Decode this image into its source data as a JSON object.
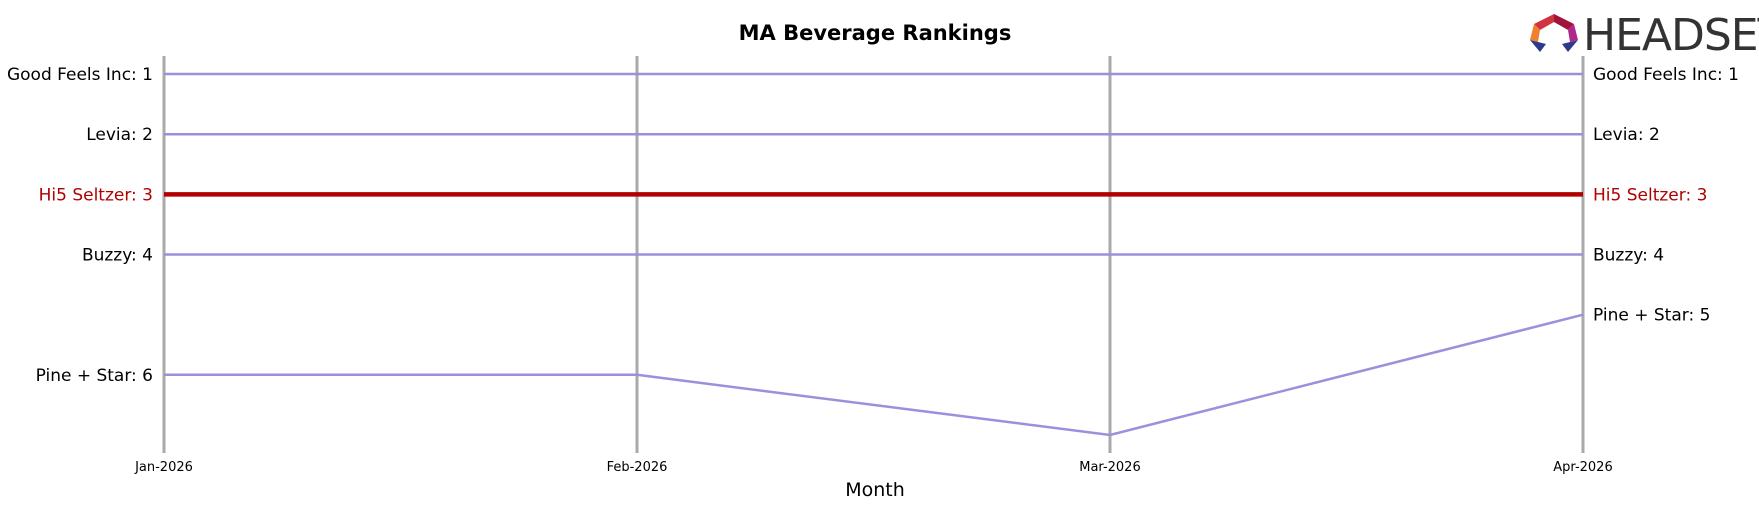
{
  "logo": {
    "text": "HEADSET"
  },
  "chart_data": {
    "type": "line",
    "title": "MA Beverage Rankings",
    "xlabel": "Month",
    "ylabel": "",
    "x": [
      "Jan-2026",
      "Feb-2026",
      "Mar-2026",
      "Apr-2026"
    ],
    "ylim": [
      7.3,
      0.7
    ],
    "y_inverted": true,
    "grid": "vertical lines at each month",
    "colors": {
      "default": "#9b90dc",
      "highlight": "#b00000",
      "grid": "#aaaaaa"
    },
    "series": [
      {
        "name": "Good Feels Inc",
        "values": [
          1,
          1,
          1,
          1
        ],
        "start_label": "Good Feels Inc: 1",
        "end_label": "Good Feels Inc: 1",
        "highlight": false
      },
      {
        "name": "Levia",
        "values": [
          2,
          2,
          2,
          2
        ],
        "start_label": "Levia: 2",
        "end_label": "Levia: 2",
        "highlight": false
      },
      {
        "name": "Hi5 Seltzer",
        "values": [
          3,
          3,
          3,
          3
        ],
        "start_label": "Hi5 Seltzer: 3",
        "end_label": "Hi5 Seltzer: 3",
        "highlight": true
      },
      {
        "name": "Buzzy",
        "values": [
          4,
          4,
          4,
          4
        ],
        "start_label": "Buzzy: 4",
        "end_label": "Buzzy: 4",
        "highlight": false
      },
      {
        "name": "Pine + Star",
        "values": [
          6,
          6,
          7,
          5
        ],
        "start_label": "Pine + Star: 6",
        "end_label": "Pine + Star: 5",
        "highlight": false
      }
    ]
  }
}
